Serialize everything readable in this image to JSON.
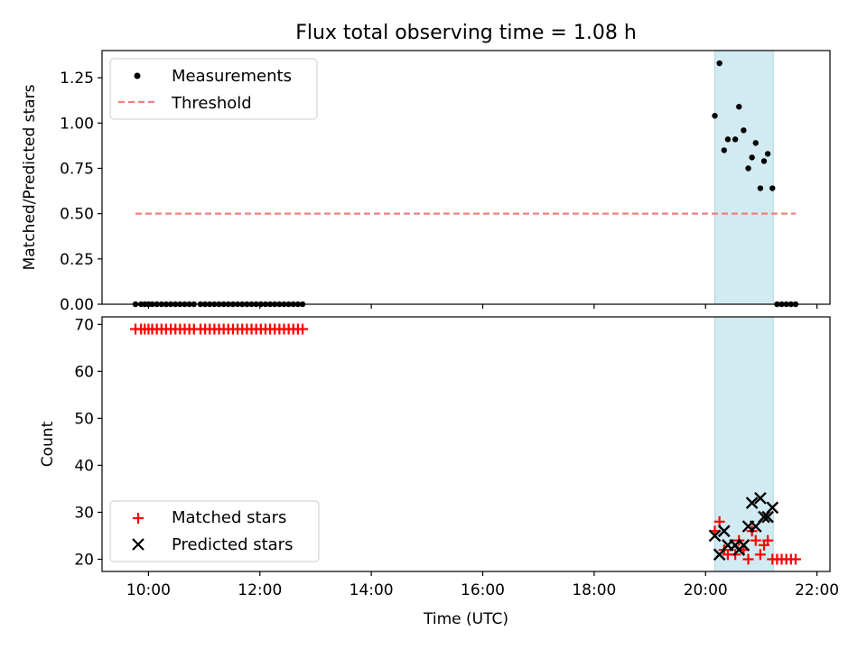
{
  "figure": {
    "title": "Flux total observing time = 1.08 h",
    "x_tick_labels": [
      "10:00",
      "12:00",
      "14:00",
      "16:00",
      "18:00",
      "20:00",
      "22:00"
    ],
    "xlabel": "Time (UTC)"
  },
  "colors": {
    "measurements": "#000000",
    "threshold": "#f08080",
    "matched": "#ff0000",
    "predicted": "#000000",
    "span": "#add8e6"
  },
  "chart_data": [
    {
      "type": "scatter",
      "panel": "top",
      "ylabel": "Matched/Predicted stars",
      "xlim": [
        "09:10",
        "22:14"
      ],
      "ylim": [
        0,
        1.4
      ],
      "y_ticks": [
        0.0,
        0.25,
        0.5,
        0.75,
        1.0,
        1.25
      ],
      "y_tick_labels": [
        "0.00",
        "0.25",
        "0.50",
        "0.75",
        "1.00",
        "1.25"
      ],
      "highlight_span": [
        "20:10",
        "21:13"
      ],
      "legend": {
        "position": "upper-left",
        "items": [
          "Measurements",
          "Threshold"
        ]
      },
      "series": [
        {
          "name": "Measurements",
          "marker": "dot",
          "points": [
            [
              "09:46",
              0
            ],
            [
              "09:52",
              0
            ],
            [
              "09:56",
              0
            ],
            [
              "10:00",
              0
            ],
            [
              "10:04",
              0
            ],
            [
              "10:09",
              0
            ],
            [
              "10:14",
              0
            ],
            [
              "10:19",
              0
            ],
            [
              "10:24",
              0
            ],
            [
              "10:29",
              0
            ],
            [
              "10:34",
              0
            ],
            [
              "10:39",
              0
            ],
            [
              "10:44",
              0
            ],
            [
              "10:49",
              0
            ],
            [
              "10:56",
              0
            ],
            [
              "11:01",
              0
            ],
            [
              "11:06",
              0
            ],
            [
              "11:11",
              0
            ],
            [
              "11:16",
              0
            ],
            [
              "11:21",
              0
            ],
            [
              "11:26",
              0
            ],
            [
              "11:31",
              0
            ],
            [
              "11:36",
              0
            ],
            [
              "11:41",
              0
            ],
            [
              "11:46",
              0
            ],
            [
              "11:51",
              0
            ],
            [
              "11:56",
              0
            ],
            [
              "12:01",
              0
            ],
            [
              "12:06",
              0
            ],
            [
              "12:11",
              0
            ],
            [
              "12:16",
              0
            ],
            [
              "12:21",
              0
            ],
            [
              "12:26",
              0
            ],
            [
              "12:31",
              0
            ],
            [
              "12:36",
              0
            ],
            [
              "12:41",
              0
            ],
            [
              "12:46",
              0
            ],
            [
              "20:10",
              1.04
            ],
            [
              "20:15",
              1.33
            ],
            [
              "20:20",
              0.85
            ],
            [
              "20:24",
              0.91
            ],
            [
              "20:32",
              0.91
            ],
            [
              "20:36",
              1.09
            ],
            [
              "20:41",
              0.96
            ],
            [
              "20:46",
              0.75
            ],
            [
              "20:50",
              0.81
            ],
            [
              "20:54",
              0.89
            ],
            [
              "20:59",
              0.64
            ],
            [
              "21:03",
              0.79
            ],
            [
              "21:07",
              0.83
            ],
            [
              "21:12",
              0.64
            ],
            [
              "21:17",
              0
            ],
            [
              "21:22",
              0
            ],
            [
              "21:27",
              0
            ],
            [
              "21:32",
              0
            ],
            [
              "21:37",
              0
            ]
          ]
        },
        {
          "name": "Threshold",
          "style": "dashed-line",
          "x": [
            "09:46",
            "21:37"
          ],
          "y": 0.5
        }
      ]
    },
    {
      "type": "scatter",
      "panel": "bottom",
      "ylabel": "Count",
      "xlim": [
        "09:10",
        "22:14"
      ],
      "ylim": [
        17.4,
        71.6
      ],
      "y_ticks": [
        20,
        30,
        40,
        50,
        60,
        70
      ],
      "y_tick_labels": [
        "20",
        "30",
        "40",
        "50",
        "60",
        "70"
      ],
      "highlight_span": [
        "20:10",
        "21:13"
      ],
      "legend": {
        "position": "lower-left",
        "items": [
          "Matched stars",
          "Predicted stars"
        ]
      },
      "series": [
        {
          "name": "Matched stars",
          "marker": "plus",
          "points": [
            [
              "09:46",
              69
            ],
            [
              "09:52",
              69
            ],
            [
              "09:56",
              69
            ],
            [
              "10:00",
              69
            ],
            [
              "10:04",
              69
            ],
            [
              "10:09",
              69
            ],
            [
              "10:14",
              69
            ],
            [
              "10:19",
              69
            ],
            [
              "10:24",
              69
            ],
            [
              "10:29",
              69
            ],
            [
              "10:34",
              69
            ],
            [
              "10:39",
              69
            ],
            [
              "10:44",
              69
            ],
            [
              "10:49",
              69
            ],
            [
              "10:56",
              69
            ],
            [
              "11:01",
              69
            ],
            [
              "11:06",
              69
            ],
            [
              "11:11",
              69
            ],
            [
              "11:16",
              69
            ],
            [
              "11:21",
              69
            ],
            [
              "11:26",
              69
            ],
            [
              "11:31",
              69
            ],
            [
              "11:36",
              69
            ],
            [
              "11:41",
              69
            ],
            [
              "11:46",
              69
            ],
            [
              "11:51",
              69
            ],
            [
              "11:56",
              69
            ],
            [
              "12:01",
              69
            ],
            [
              "12:06",
              69
            ],
            [
              "12:11",
              69
            ],
            [
              "12:16",
              69
            ],
            [
              "12:21",
              69
            ],
            [
              "12:26",
              69
            ],
            [
              "12:31",
              69
            ],
            [
              "12:36",
              69
            ],
            [
              "12:41",
              69
            ],
            [
              "12:46",
              69
            ],
            [
              "20:10",
              26
            ],
            [
              "20:15",
              28
            ],
            [
              "20:20",
              22
            ],
            [
              "20:24",
              21
            ],
            [
              "20:32",
              21
            ],
            [
              "20:36",
              24
            ],
            [
              "20:41",
              22
            ],
            [
              "20:46",
              20
            ],
            [
              "20:50",
              26
            ],
            [
              "20:54",
              24
            ],
            [
              "20:59",
              21
            ],
            [
              "21:03",
              23
            ],
            [
              "21:07",
              24
            ],
            [
              "21:12",
              20
            ],
            [
              "21:17",
              20
            ],
            [
              "21:22",
              20
            ],
            [
              "21:27",
              20
            ],
            [
              "21:32",
              20
            ],
            [
              "21:37",
              20
            ]
          ]
        },
        {
          "name": "Predicted stars",
          "marker": "x",
          "points": [
            [
              "20:10",
              25
            ],
            [
              "20:15",
              21
            ],
            [
              "20:20",
              26
            ],
            [
              "20:24",
              23
            ],
            [
              "20:32",
              23
            ],
            [
              "20:36",
              22
            ],
            [
              "20:41",
              23
            ],
            [
              "20:46",
              27
            ],
            [
              "20:50",
              32
            ],
            [
              "20:54",
              27
            ],
            [
              "20:59",
              33
            ],
            [
              "21:03",
              29
            ],
            [
              "21:07",
              29
            ],
            [
              "21:12",
              31
            ]
          ]
        }
      ]
    }
  ]
}
